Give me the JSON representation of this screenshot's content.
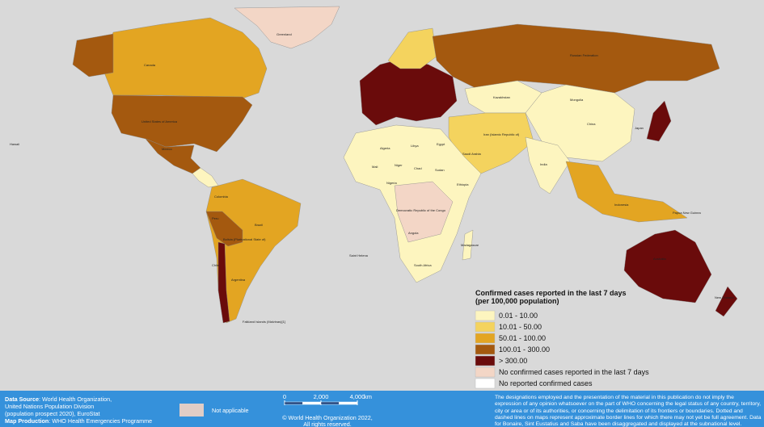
{
  "map": {
    "labels": [
      "Greenland",
      "Canada",
      "United States of America",
      "Mexico",
      "Brazil",
      "Peru",
      "Bolivia (Plurinational State of)",
      "Argentina",
      "Chile",
      "Colombia",
      "Russian Federation",
      "Kazakhstan",
      "Mongolia",
      "China",
      "India",
      "Iran (Islamic Republic of)",
      "Saudi Arabia",
      "Algeria",
      "Libya",
      "Egypt",
      "Mali",
      "Niger",
      "Chad",
      "Sudan",
      "Nigeria",
      "Ethiopia",
      "Democratic Republic of the Congo",
      "Angola",
      "South Africa",
      "Madagascar",
      "Indonesia",
      "Papua New Guinea",
      "Australia",
      "New Zealand",
      "Japan",
      "Falkland Islands (Malvinas)[1]",
      "Saint Helena",
      "Hawaii"
    ]
  },
  "legend": {
    "title": "Confirmed cases reported in the last 7 days",
    "subtitle": "(per 100,000 population)",
    "items": [
      {
        "label": "0.01 - 10.00",
        "color": "#fdf5bf"
      },
      {
        "label": "10.01 - 50.00",
        "color": "#f4d35e"
      },
      {
        "label": "50.01 - 100.00",
        "color": "#e3a522"
      },
      {
        "label": "100.01 - 300.00",
        "color": "#a4590f"
      },
      {
        "label": "> 300.00",
        "color": "#6a0b0b"
      },
      {
        "label": "No confirmed cases reported in the last 7 days",
        "color": "#f3d6c6"
      },
      {
        "label": "No reported confirmed cases",
        "color": "#ffffff"
      }
    ]
  },
  "footer": {
    "data_source_label": "Data Source",
    "data_source": "World Health Organization,",
    "data_source_2": "United Nations Population Division",
    "data_source_3": "(population prospect 2020), EuroStat",
    "map_production_label": "Map Production",
    "map_production": "WHO Health Emergencies Programme",
    "not_applicable": "Not applicable",
    "not_applicable_color": "#e1cdc6",
    "scale": {
      "ticks": [
        0,
        {
          "value": 2000,
          "label": "2,000"
        },
        {
          "value": 4000,
          "label": "4,000"
        }
      ],
      "unit": "km"
    },
    "copyright": "© World Health Organization  2022,",
    "copyright_2": "All rights reserved.",
    "disclaimer": "The designations employed and the presentation of the material in this publication do not imply the expression of any opinion whatsoever on the part of WHO concerning the legal status of any country, territory, city or area or of its authorities, or concerning the delimitation of its frontiers or boundaries. Dotted and dashed lines on maps represent approximate border lines for which there may not yet be full agreement. Data for Bonaire, Sint Eustatius and Saba have been disaggregated and displayed at the subnational level."
  }
}
